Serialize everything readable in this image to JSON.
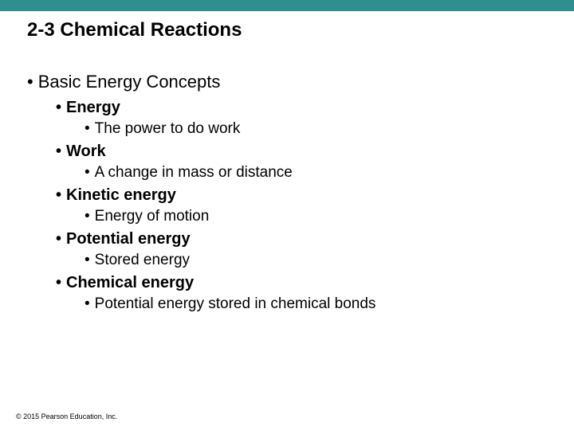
{
  "colors": {
    "top_bar": "#2f8e8e",
    "background": "#ffffff",
    "text": "#000000"
  },
  "typography": {
    "title_fontsize": 24,
    "title_weight": "bold",
    "lvl1_fontsize": 22,
    "lvl1_weight": "normal",
    "lvl2_fontsize": 20,
    "lvl2_weight": "bold",
    "lvl3_fontsize": 19,
    "lvl3_weight": "normal",
    "copyright_fontsize": 9,
    "font_family": "Arial"
  },
  "title": "2-3 Chemical Reactions",
  "main_topic": "Basic Energy Concepts",
  "items": [
    {
      "term": "Energy",
      "def": "The power to do work"
    },
    {
      "term": "Work",
      "def": "A change in mass or distance"
    },
    {
      "term": "Kinetic energy",
      "def": "Energy of motion"
    },
    {
      "term": "Potential energy",
      "def": "Stored energy"
    },
    {
      "term": "Chemical energy",
      "def": "Potential energy stored in chemical bonds"
    }
  ],
  "copyright": "© 2015 Pearson Education, Inc."
}
